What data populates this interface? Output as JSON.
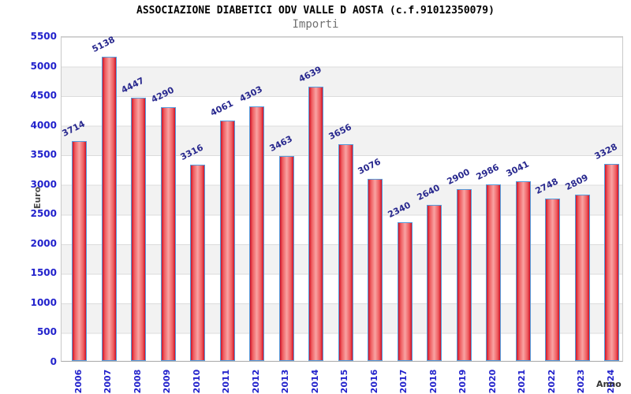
{
  "header": {
    "title": "ASSOCIAZIONE DIABETICI ODV VALLE D AOSTA (c.f.91012350079)",
    "subtitle": "Importi"
  },
  "chart_data": {
    "type": "bar",
    "title": "ASSOCIAZIONE DIABETICI ODV VALLE D AOSTA (c.f.91012350079)",
    "subtitle": "Importi",
    "xlabel": "Anno",
    "ylabel": "Euro",
    "categories": [
      "2006",
      "2007",
      "2008",
      "2009",
      "2010",
      "2011",
      "2012",
      "2013",
      "2014",
      "2015",
      "2016",
      "2017",
      "2018",
      "2019",
      "2020",
      "2021",
      "2022",
      "2023",
      "2024"
    ],
    "values": [
      3714,
      5138,
      4447,
      4290,
      3316,
      4061,
      4303,
      3463,
      4639,
      3656,
      3076,
      2340,
      2640,
      2900,
      2986,
      3041,
      2748,
      2809,
      3328
    ],
    "ylim": [
      0,
      5500
    ],
    "ytick_step": 500,
    "grid": "horizontal-bands-alternating",
    "legend": "none",
    "colors": {
      "bar_edge_fill": "#cf1126",
      "bar_mid_fill": "#f9a3a3",
      "bar_inner_fill": "#ee5a5d",
      "bar_border": "#559ddd",
      "ytick_label": "#2222cc",
      "xtick_label": "#2222cc",
      "value_label": "#28288e",
      "band_gray": "#f2f2f2",
      "gridline": "#dcdcdc",
      "axis_title": "#4a4a4a",
      "title_color": "#000000",
      "subtitle_color": "#707070"
    }
  }
}
